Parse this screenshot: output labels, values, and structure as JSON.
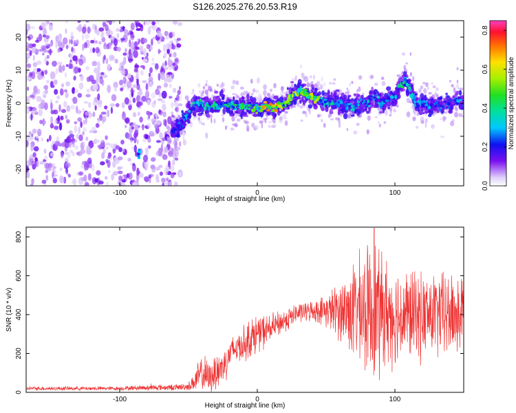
{
  "title": "S126.2025.276.20.53.R19",
  "colors": {
    "snr_line": "#ee3333",
    "spectrogram_low": "#d9c8f5",
    "spectrogram_mid": "#7a1ef0",
    "spectrogram_core": "#2a2cf0"
  },
  "chart_data": [
    {
      "type": "heatmap",
      "name": "spectrogram",
      "title": "S126.2025.276.20.53.R19",
      "xlabel": "Height of straight line (km)",
      "ylabel": "Frequency (Hz)",
      "xlim": [
        -168,
        150
      ],
      "ylim": [
        -25,
        25
      ],
      "xticks": [
        -100,
        0,
        100
      ],
      "yticks": [
        -20,
        -10,
        0,
        10,
        20
      ],
      "colorbar": {
        "label": "Normalized spectral amplitude",
        "range": [
          0.0,
          0.85
        ],
        "ticks": [
          "0.0",
          "0.2",
          "0.4",
          "0.6",
          "0.8"
        ],
        "tick_values": [
          0.0,
          0.2,
          0.4,
          0.6,
          0.8
        ],
        "colormap": "gist_ncar_like"
      },
      "noise_region_x": [
        -168,
        -62
      ],
      "signal_onset_x": -62,
      "ridge": {
        "x": [
          -62,
          -55,
          -45,
          -35,
          -25,
          -15,
          -5,
          0,
          5,
          10,
          15,
          20,
          25,
          30,
          35,
          40,
          45,
          50,
          55,
          60,
          65,
          70,
          75,
          80,
          85,
          90,
          95,
          100,
          103,
          105,
          108,
          110,
          115,
          120,
          125,
          130,
          135,
          140,
          145,
          150
        ],
        "y": [
          -9,
          -6,
          0,
          -1,
          0,
          -1,
          -1,
          -2,
          -1,
          -1,
          -1,
          0,
          2,
          4,
          3,
          2,
          1,
          0,
          1,
          0,
          -1,
          -1,
          0,
          0,
          2,
          0,
          1,
          2,
          5,
          6,
          7,
          5,
          0,
          0,
          -1,
          0,
          -1,
          0,
          1,
          0
        ],
        "amplitude": [
          0.25,
          0.3,
          0.4,
          0.42,
          0.45,
          0.45,
          0.5,
          0.55,
          0.7,
          0.72,
          0.72,
          0.55,
          0.6,
          0.65,
          0.6,
          0.6,
          0.55,
          0.45,
          0.4,
          0.35,
          0.4,
          0.38,
          0.35,
          0.35,
          0.4,
          0.35,
          0.3,
          0.35,
          0.5,
          0.45,
          0.55,
          0.4,
          0.35,
          0.3,
          0.32,
          0.28,
          0.3,
          0.3,
          0.3,
          0.32
        ]
      },
      "isolated_patch": {
        "x": -86,
        "y": -15,
        "amplitude": 0.3
      }
    },
    {
      "type": "line",
      "name": "snr",
      "xlabel": "Height of straight line (km)",
      "ylabel": "SNR (10 * v/v)",
      "xlim": [
        -168,
        150
      ],
      "ylim": [
        0,
        850
      ],
      "xticks": [
        -100,
        0,
        100
      ],
      "yticks": [
        0,
        200,
        400,
        600,
        800
      ],
      "envelope": {
        "x": [
          -168,
          -150,
          -120,
          -100,
          -80,
          -60,
          -50,
          -45,
          -40,
          -35,
          -30,
          -25,
          -20,
          -15,
          -10,
          -5,
          0,
          10,
          20,
          30,
          40,
          50,
          60,
          70,
          80,
          85,
          90,
          100,
          110,
          120,
          130,
          140,
          150
        ],
        "baseline": [
          20,
          20,
          20,
          20,
          25,
          25,
          30,
          60,
          100,
          70,
          110,
          130,
          200,
          230,
          250,
          280,
          300,
          330,
          370,
          410,
          420,
          420,
          420,
          420,
          420,
          420,
          410,
          400,
          400,
          390,
          400,
          400,
          400
        ],
        "amplitude": [
          10,
          10,
          10,
          10,
          15,
          15,
          20,
          60,
          100,
          80,
          100,
          100,
          80,
          80,
          90,
          100,
          100,
          70,
          60,
          50,
          50,
          80,
          150,
          250,
          320,
          380,
          300,
          250,
          230,
          220,
          220,
          220,
          220
        ]
      },
      "peak_snr": 845,
      "peak_x": 85
    }
  ]
}
